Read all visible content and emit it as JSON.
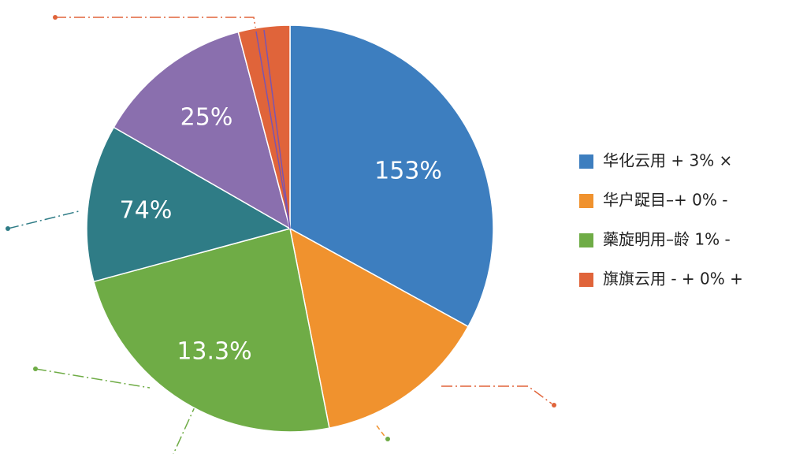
{
  "chart_data": {
    "type": "pie",
    "categories": [
      "华化云用 + 3% ×",
      "华户踀目–+ 0% -",
      "藥旋明用–龄 1% -",
      null,
      null,
      "旗旗云用 - + 0% +"
    ],
    "values": [
      33,
      13.9,
      23.9,
      12.5,
      12.6,
      4.1
    ],
    "colors": [
      "#3d7ebf",
      "#f0922e",
      "#6fac46",
      "#2f7c86",
      "#8a6fae",
      "#e0643a"
    ],
    "annotations": [
      "153%",
      "25%",
      "74%",
      "13.3%"
    ],
    "legend": "right"
  }
}
